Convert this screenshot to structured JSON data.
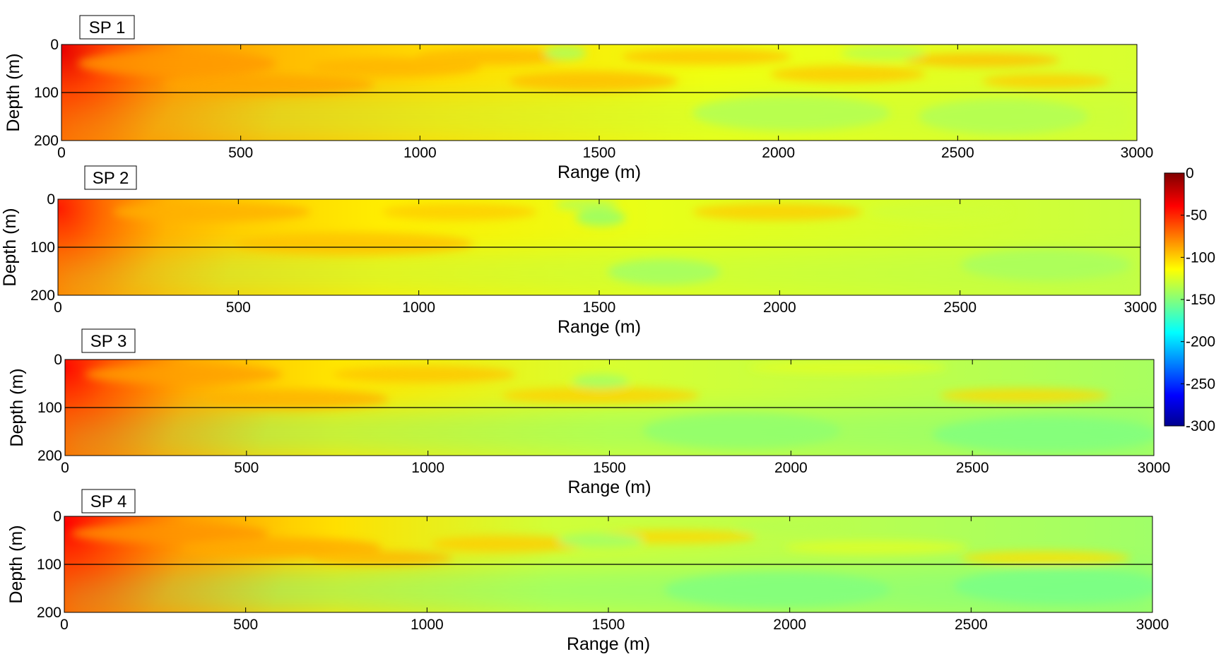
{
  "chart_data": [
    {
      "type": "heatmap",
      "title": "SP 1",
      "xlabel": "Range (m)",
      "ylabel": "Depth (m)",
      "xlim": [
        0,
        3000
      ],
      "ylim": [
        0,
        200
      ],
      "y_reversed": true,
      "xticks": [
        "0",
        "500",
        "1000",
        "1500",
        "2000",
        "2500",
        "3000"
      ],
      "yticks": [
        "0",
        "100",
        "200"
      ],
      "reference_line_depth": 100,
      "shading": [
        {
          "x": 0,
          "y": 10,
          "value": -55
        },
        {
          "x": 50,
          "y": 50,
          "value": -80
        },
        {
          "x": 150,
          "y": 150,
          "value": -95
        },
        {
          "x": 400,
          "y": 60,
          "value": -95
        },
        {
          "x": 800,
          "y": 80,
          "value": -100
        },
        {
          "x": 1200,
          "y": 40,
          "value": -105
        },
        {
          "x": 1700,
          "y": 30,
          "value": -105
        },
        {
          "x": 2000,
          "y": 150,
          "value": -130
        },
        {
          "x": 2500,
          "y": 60,
          "value": -110
        },
        {
          "x": 2800,
          "y": 160,
          "value": -132
        }
      ]
    },
    {
      "type": "heatmap",
      "title": "SP 2",
      "xlabel": "Range (m)",
      "ylabel": "Depth (m)",
      "xlim": [
        0,
        3000
      ],
      "ylim": [
        0,
        200
      ],
      "y_reversed": true,
      "xticks": [
        "0",
        "500",
        "1000",
        "1500",
        "2000",
        "2500",
        "3000"
      ],
      "yticks": [
        "0",
        "100",
        "200"
      ],
      "reference_line_depth": 100,
      "shading": [
        {
          "x": 0,
          "y": 20,
          "value": -65
        },
        {
          "x": 100,
          "y": 100,
          "value": -90
        },
        {
          "x": 600,
          "y": 80,
          "value": -105
        },
        {
          "x": 1000,
          "y": 30,
          "value": -105
        },
        {
          "x": 1450,
          "y": 40,
          "value": -135
        },
        {
          "x": 1700,
          "y": 120,
          "value": -130
        },
        {
          "x": 2200,
          "y": 150,
          "value": -128
        },
        {
          "x": 2800,
          "y": 120,
          "value": -130
        }
      ]
    },
    {
      "type": "heatmap",
      "title": "SP 3",
      "xlabel": "Range (m)",
      "ylabel": "Depth (m)",
      "xlim": [
        0,
        3000
      ],
      "ylim": [
        0,
        200
      ],
      "y_reversed": true,
      "xticks": [
        "0",
        "500",
        "1000",
        "1500",
        "2000",
        "2500",
        "3000"
      ],
      "yticks": [
        "0",
        "100",
        "200"
      ],
      "reference_line_depth": 100,
      "shading": [
        {
          "x": 0,
          "y": 20,
          "value": -60
        },
        {
          "x": 150,
          "y": 150,
          "value": -90
        },
        {
          "x": 600,
          "y": 40,
          "value": -100
        },
        {
          "x": 1000,
          "y": 150,
          "value": -120
        },
        {
          "x": 1500,
          "y": 40,
          "value": -130
        },
        {
          "x": 2000,
          "y": 160,
          "value": -135
        },
        {
          "x": 2600,
          "y": 150,
          "value": -140
        }
      ]
    },
    {
      "type": "heatmap",
      "title": "SP 4",
      "xlabel": "Range (m)",
      "ylabel": "Depth (m)",
      "xlim": [
        0,
        3000
      ],
      "ylim": [
        0,
        200
      ],
      "y_reversed": true,
      "xticks": [
        "0",
        "500",
        "1000",
        "1500",
        "2000",
        "2500",
        "3000"
      ],
      "yticks": [
        "0",
        "100",
        "200"
      ],
      "reference_line_depth": 100,
      "shading": [
        {
          "x": 0,
          "y": 10,
          "value": -60
        },
        {
          "x": 100,
          "y": 150,
          "value": -85
        },
        {
          "x": 500,
          "y": 50,
          "value": -95
        },
        {
          "x": 800,
          "y": 70,
          "value": -100
        },
        {
          "x": 1500,
          "y": 40,
          "value": -125
        },
        {
          "x": 2200,
          "y": 150,
          "value": -135
        },
        {
          "x": 2800,
          "y": 130,
          "value": -140
        }
      ]
    }
  ],
  "colorbar": {
    "range": [
      -300,
      0
    ],
    "tick_labels": [
      "0",
      "-50",
      "-100",
      "-150",
      "-200",
      "-250",
      "-300"
    ],
    "colormap": "jet",
    "colors": [
      "#800000",
      "#ff0000",
      "#ffff00",
      "#00ffff",
      "#0000ff",
      "#00008f"
    ]
  }
}
